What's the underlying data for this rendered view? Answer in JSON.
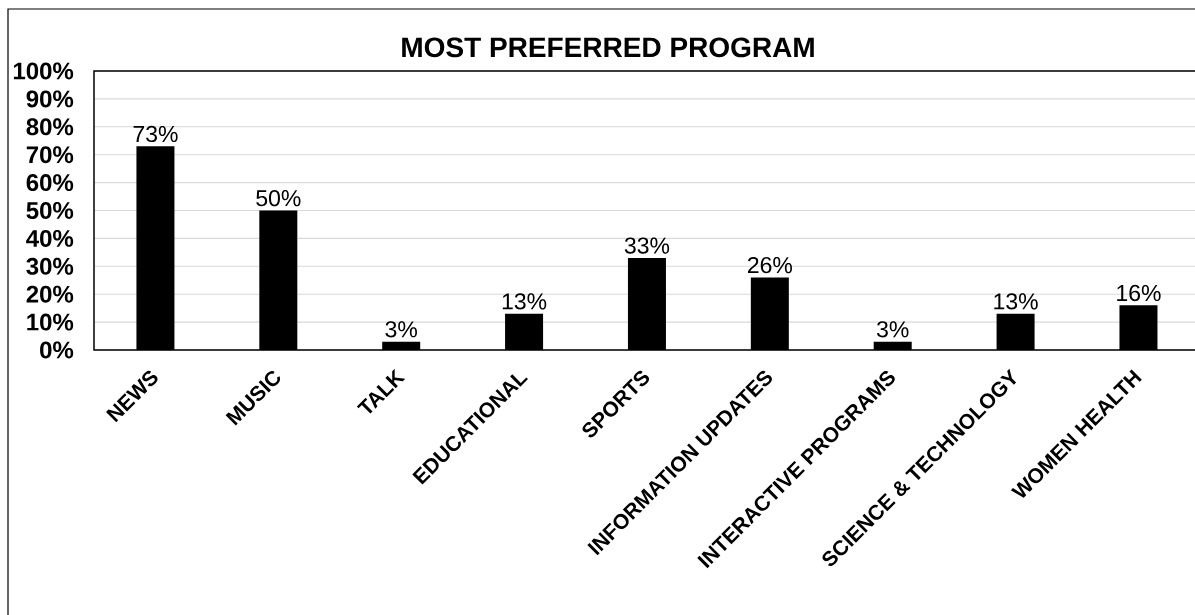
{
  "chart_data": {
    "type": "bar",
    "title": "MOST PREFERRED PROGRAM",
    "categories": [
      "NEWS",
      "MUSIC",
      "TALK",
      "EDUCATIONAL",
      "SPORTS",
      "INFORMATION UPDATES",
      "INTERACTIVE PROGRAMS",
      "SCIENCE & TECHNOLOGY",
      "WOMEN HEALTH"
    ],
    "values": [
      73,
      50,
      3,
      13,
      33,
      26,
      3,
      13,
      16
    ],
    "value_labels": [
      "73%",
      "50%",
      "3%",
      "13%",
      "33%",
      "26%",
      "3%",
      "13%",
      "16%"
    ],
    "color": "#000000",
    "ylim": [
      0,
      100
    ],
    "yticks": [
      {
        "value": 0,
        "label": "0%"
      },
      {
        "value": 10,
        "label": "10%"
      },
      {
        "value": 20,
        "label": "20%"
      },
      {
        "value": 30,
        "label": "30%"
      },
      {
        "value": 40,
        "label": "40%"
      },
      {
        "value": 50,
        "label": "50%"
      },
      {
        "value": 60,
        "label": "60%"
      },
      {
        "value": 70,
        "label": "70%"
      },
      {
        "value": 80,
        "label": "80%"
      },
      {
        "value": 90,
        "label": "90%"
      },
      {
        "value": 100,
        "label": "100%"
      }
    ],
    "grid": "y"
  }
}
